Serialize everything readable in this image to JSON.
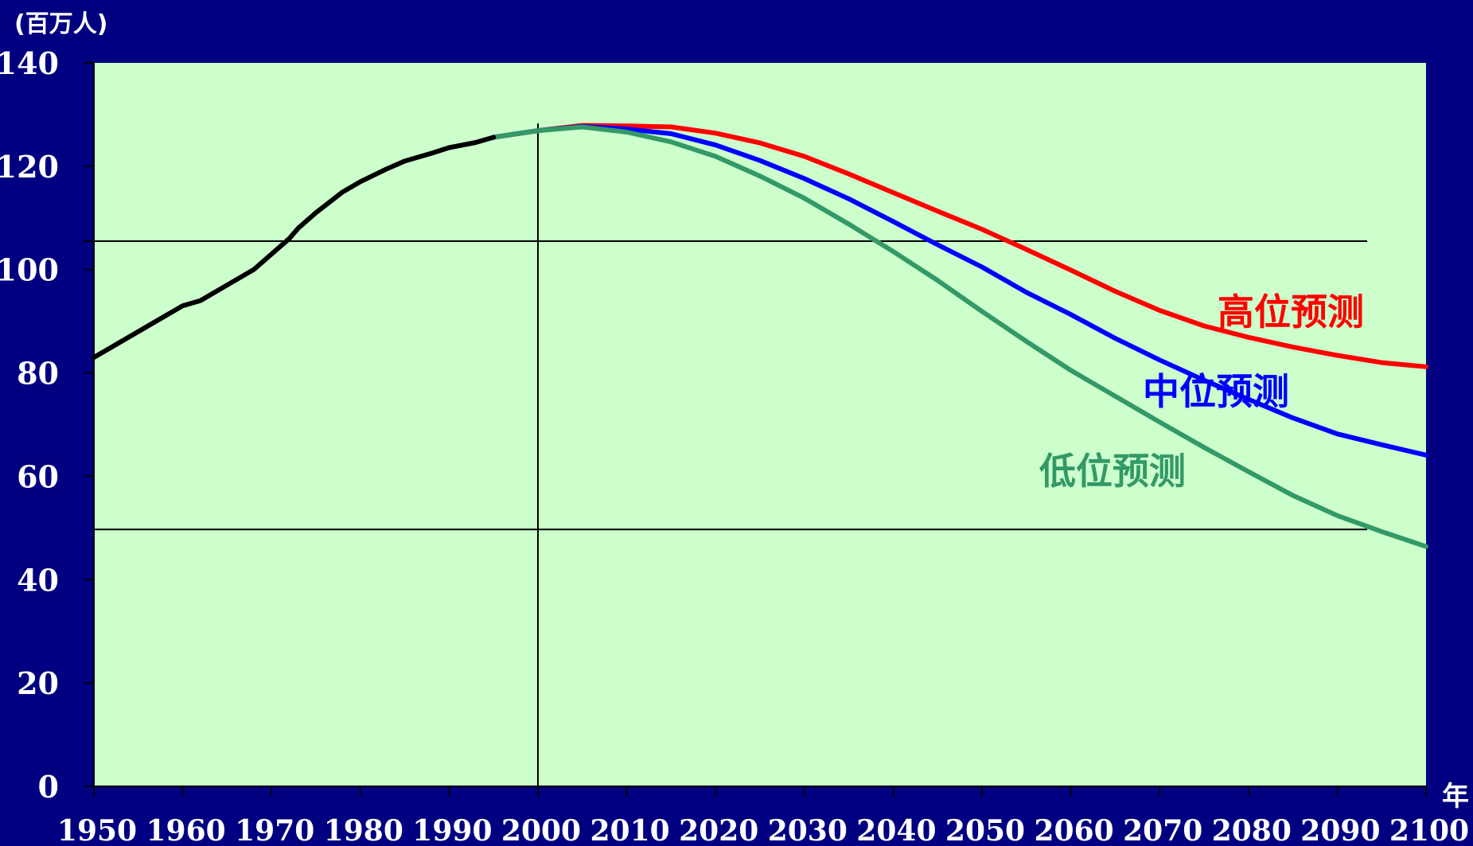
{
  "chart_data": {
    "type": "line",
    "y_unit": "(百万人)",
    "x_unit": "年",
    "xlim": [
      1950,
      2100
    ],
    "ylim": [
      0,
      140
    ],
    "x_ticks": [
      "1950",
      "1960",
      "1970",
      "1980",
      "1990",
      "2000",
      "2010",
      "2020",
      "2030",
      "2040",
      "2050",
      "2060",
      "2070",
      "2080",
      "2090",
      "2100"
    ],
    "y_ticks": [
      "0",
      "20",
      "40",
      "60",
      "80",
      "100",
      "120",
      "140"
    ],
    "reference_lines": {
      "horizontal": [
        105.5,
        49.7
      ],
      "vertical": [
        2000
      ]
    },
    "colors": {
      "background": "#000080",
      "plot_area": "#ccffcc",
      "actual": "#000000",
      "high": "#ff0000",
      "mid": "#0000ff",
      "low": "#339966"
    },
    "series": [
      {
        "key": "actual",
        "color": "#000000",
        "x": [
          1950,
          1952,
          1955,
          1958,
          1960,
          1962,
          1965,
          1968,
          1970,
          1972,
          1973,
          1975,
          1978,
          1980,
          1983,
          1985,
          1988,
          1990,
          1993,
          1995
        ],
        "y": [
          83,
          85,
          88,
          91,
          93,
          94,
          97,
          100,
          103,
          106,
          108,
          111,
          115,
          117,
          119.5,
          121,
          122.5,
          123.6,
          124.6,
          125.6
        ]
      },
      {
        "key": "high",
        "name": "高位预测",
        "color": "#ff0000",
        "x": [
          1995,
          2000,
          2005,
          2010,
          2015,
          2020,
          2025,
          2030,
          2035,
          2040,
          2045,
          2050,
          2055,
          2060,
          2065,
          2070,
          2075,
          2080,
          2085,
          2090,
          2095,
          2100
        ],
        "y": [
          125.6,
          126.9,
          127.9,
          127.8,
          127.6,
          126.4,
          124.5,
          121.9,
          118.5,
          114.9,
          111.3,
          107.8,
          103.9,
          99.9,
          95.8,
          92.1,
          89.1,
          86.9,
          85.0,
          83.4,
          82.0,
          81.2
        ]
      },
      {
        "key": "mid",
        "name": "中位预测",
        "color": "#0000ff",
        "x": [
          1995,
          2000,
          2005,
          2010,
          2015,
          2020,
          2025,
          2030,
          2035,
          2040,
          2045,
          2050,
          2055,
          2060,
          2065,
          2070,
          2075,
          2080,
          2085,
          2090,
          2095,
          2100
        ],
        "y": [
          125.6,
          126.9,
          127.7,
          127.2,
          126.3,
          124.1,
          121.1,
          117.6,
          113.7,
          109.3,
          104.8,
          100.5,
          95.6,
          91.3,
          86.7,
          82.5,
          78.6,
          74.9,
          71.3,
          68.2,
          66.1,
          64.1
        ]
      },
      {
        "key": "low",
        "name": "低位预测",
        "color": "#339966",
        "x": [
          1995,
          2000,
          2005,
          2010,
          2015,
          2020,
          2025,
          2030,
          2035,
          2040,
          2045,
          2050,
          2055,
          2060,
          2065,
          2070,
          2075,
          2080,
          2085,
          2090,
          2095,
          2100
        ],
        "y": [
          125.6,
          126.9,
          127.6,
          126.6,
          124.7,
          121.9,
          118.1,
          113.8,
          108.8,
          103.5,
          97.9,
          91.9,
          86.1,
          80.5,
          75.5,
          70.5,
          65.6,
          60.9,
          56.3,
          52.4,
          49.3,
          46.4
        ]
      }
    ]
  }
}
